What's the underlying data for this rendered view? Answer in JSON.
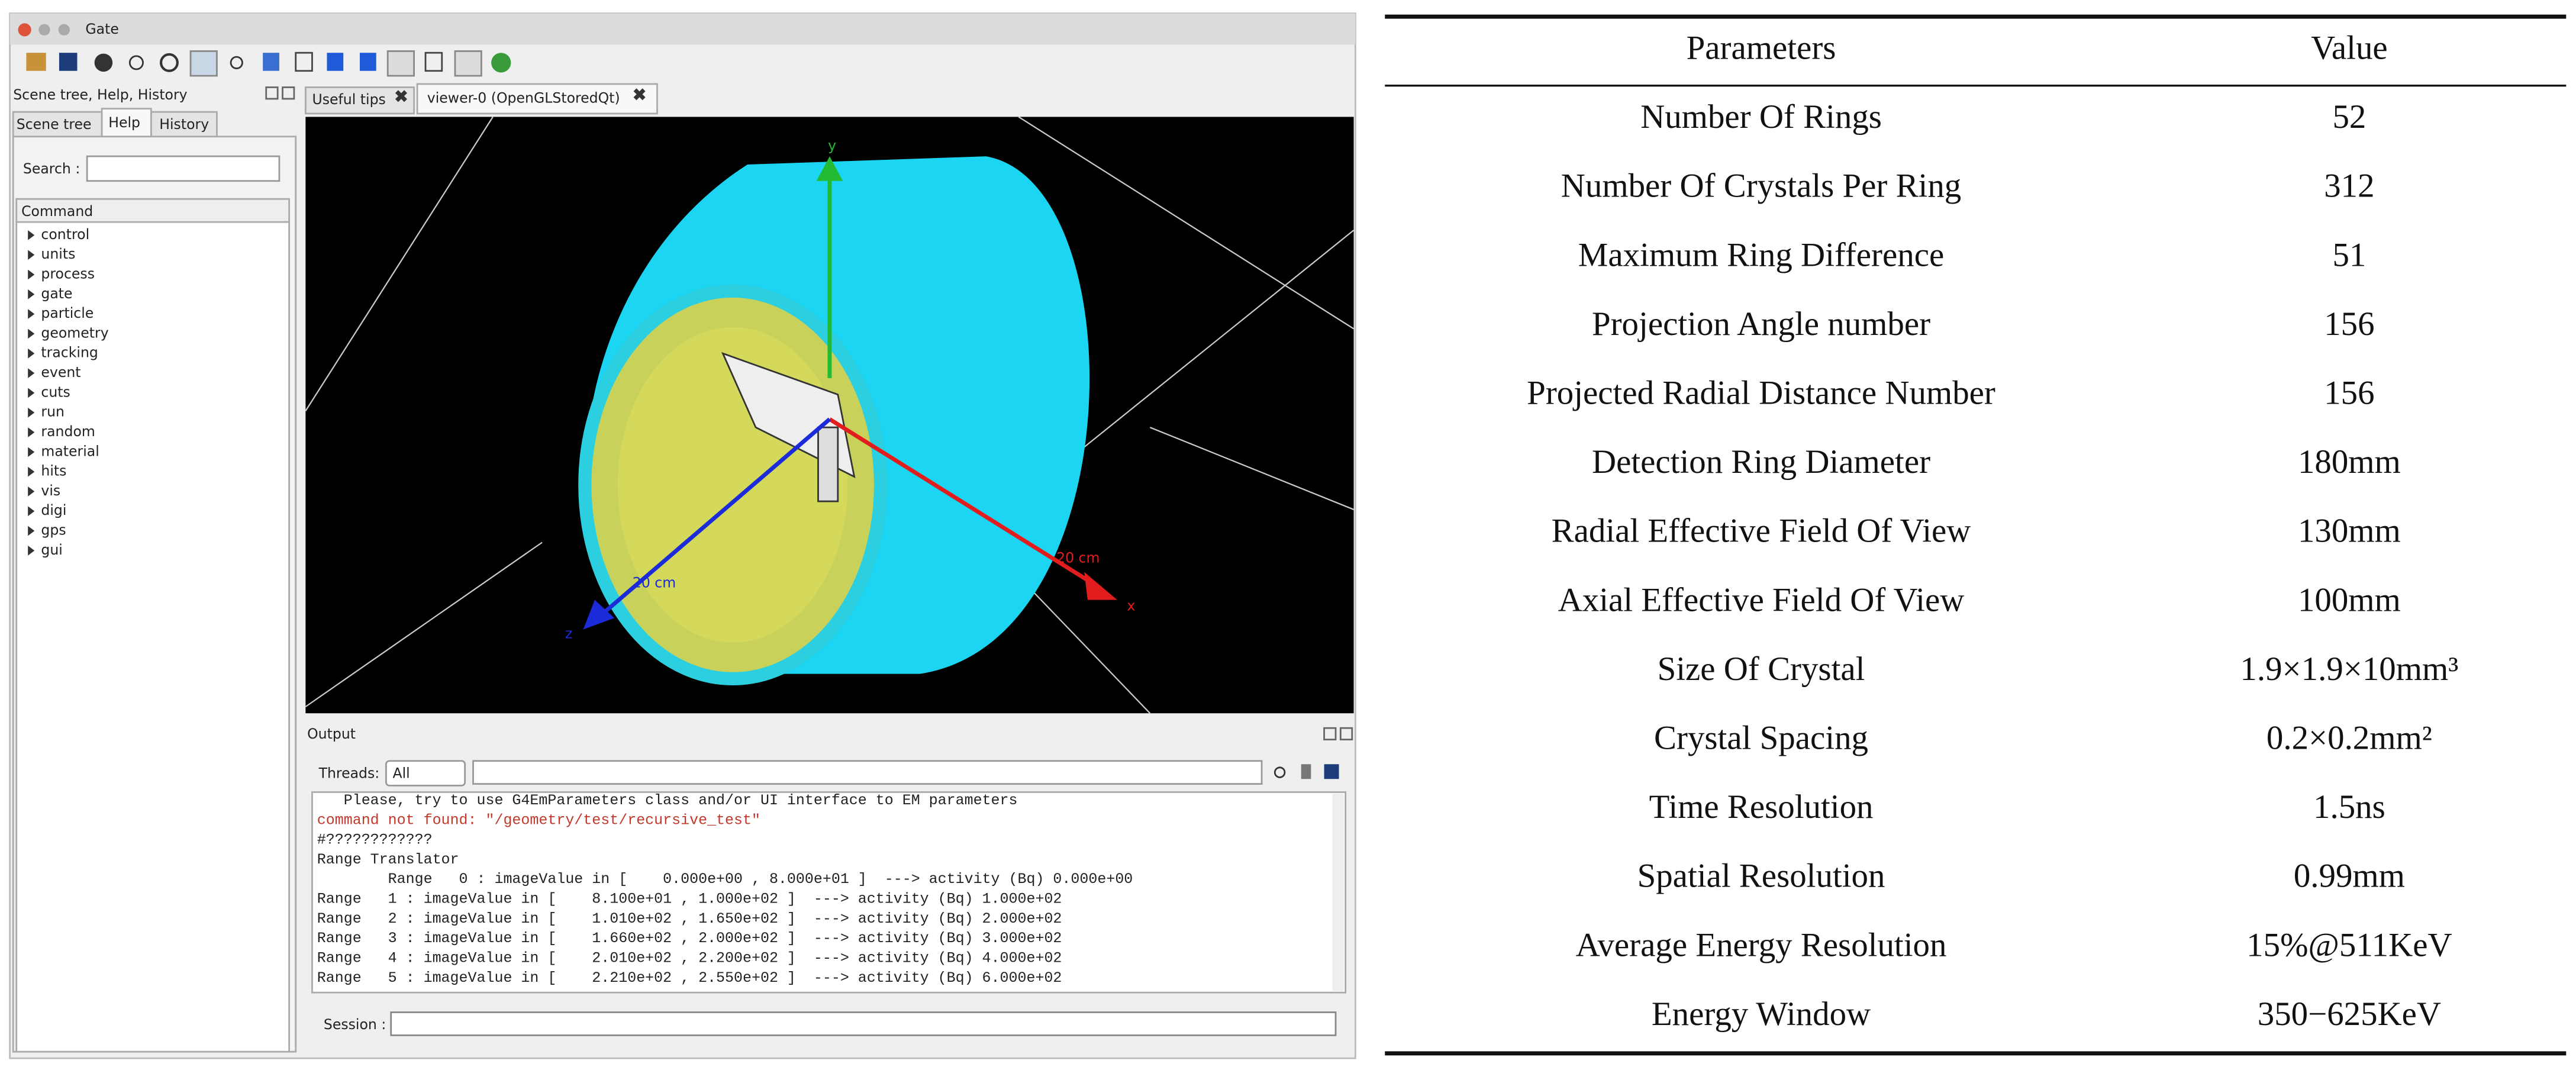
{
  "window": {
    "title": "Gate",
    "panel_title": "Scene tree, Help, History",
    "tabs": [
      "Scene tree",
      "Help",
      "History"
    ],
    "search_label": "Search :",
    "command_header": "Command",
    "commands": [
      "control",
      "units",
      "process",
      "gate",
      "particle",
      "geometry",
      "tracking",
      "event",
      "cuts",
      "run",
      "random",
      "material",
      "hits",
      "vis",
      "digi",
      "gps",
      "gui"
    ],
    "viewer_tabs": [
      "Useful tips",
      "viewer-0 (OpenGLStoredQt)"
    ],
    "axes": {
      "y": "y",
      "x": "x",
      "z": "z",
      "x_scale": "20 cm",
      "z_scale": "20 cm"
    }
  },
  "output": {
    "title": "Output",
    "threads_label": "Threads:",
    "threads_value": "All",
    "lines": [
      "   Please, try to use G4EmParameters class and/or UI interface to EM parameters",
      "command not found: \"/geometry/test/recursive_test\"",
      "#????????????",
      "Range Translator",
      "        Range   0 : imageValue in [    0.000e+00 , 8.000e+01 ]  ---> activity (Bq) 0.000e+00",
      "Range   1 : imageValue in [    8.100e+01 , 1.000e+02 ]  ---> activity (Bq) 1.000e+02",
      "Range   2 : imageValue in [    1.010e+02 , 1.650e+02 ]  ---> activity (Bq) 2.000e+02",
      "Range   3 : imageValue in [    1.660e+02 , 2.000e+02 ]  ---> activity (Bq) 3.000e+02",
      "Range   4 : imageValue in [    2.010e+02 , 2.200e+02 ]  ---> activity (Bq) 4.000e+02",
      "Range   5 : imageValue in [    2.210e+02 , 2.550e+02 ]  ---> activity (Bq) 6.000e+02"
    ],
    "session_label": "Session :"
  },
  "table": {
    "header": [
      "Parameters",
      "Value"
    ],
    "rows": [
      [
        "Number Of Rings",
        "52"
      ],
      [
        "Number Of Crystals Per Ring",
        "312"
      ],
      [
        "Maximum Ring Difference",
        "51"
      ],
      [
        "Projection Angle number",
        "156"
      ],
      [
        "Projected Radial Distance Number",
        "156"
      ],
      [
        "Detection Ring Diameter",
        "180mm"
      ],
      [
        "Radial Effective Field Of View",
        "130mm"
      ],
      [
        "Axial Effective Field Of View",
        "100mm"
      ],
      [
        "Size Of Crystal",
        "1.9×1.9×10mm³"
      ],
      [
        "Crystal Spacing",
        "0.2×0.2mm²"
      ],
      [
        "Time Resolution",
        "1.5ns"
      ],
      [
        "Spatial Resolution",
        "0.99mm"
      ],
      [
        "Average Energy Resolution",
        "15%@511KeV"
      ],
      [
        "Energy Window",
        "350−625KeV"
      ]
    ]
  }
}
